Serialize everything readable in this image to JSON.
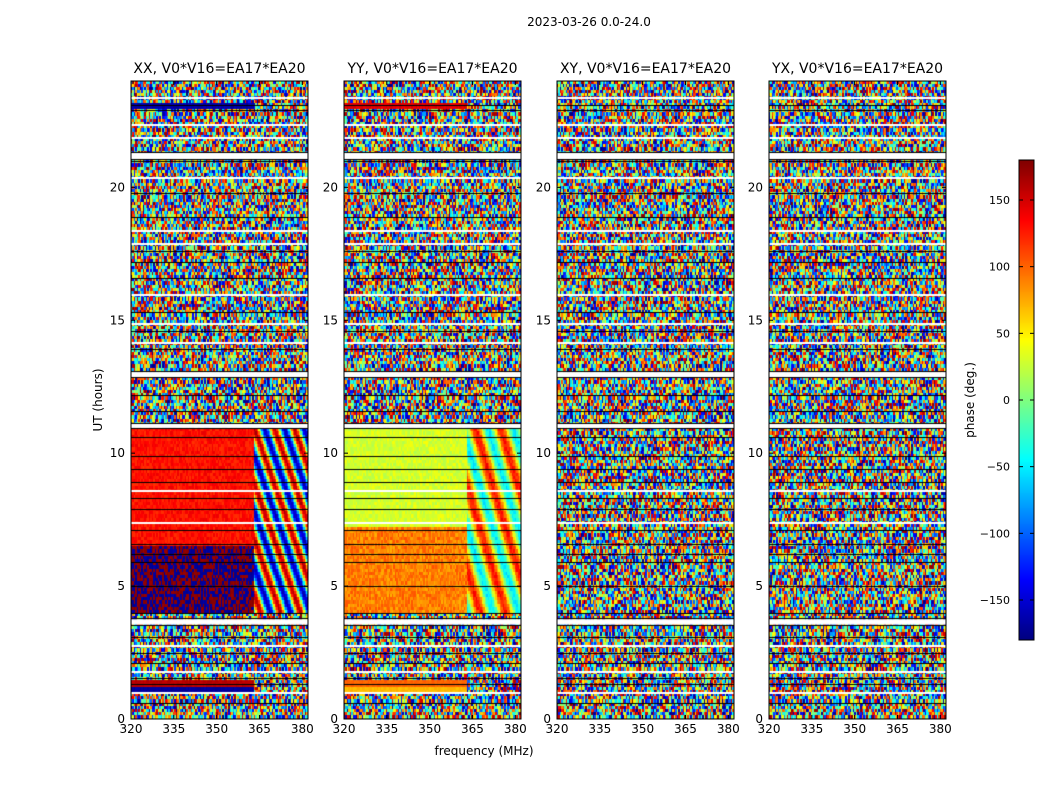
{
  "suptitle": "2023-03-26 0.0-24.0",
  "chart_data": {
    "type": "heatmap",
    "panels": [
      {
        "title": "XX, V0*V16=EA17*EA20",
        "pol": "XX"
      },
      {
        "title": "YY, V0*V16=EA17*EA20",
        "pol": "YY"
      },
      {
        "title": "XY, V0*V16=EA17*EA20",
        "pol": "XY"
      },
      {
        "title": "YX, V0*V16=EA17*EA20",
        "pol": "YX"
      }
    ],
    "xlabel": "frequency (MHz)",
    "ylabel": "UT (hours)",
    "xlim": [
      320,
      382
    ],
    "ylim": [
      0,
      24
    ],
    "xticks": [
      320,
      335,
      350,
      365,
      380
    ],
    "yticks": [
      0,
      5,
      10,
      15,
      20
    ],
    "colorbar": {
      "label": "phase (deg.)",
      "range": [
        -180,
        180
      ],
      "ticks": [
        150,
        100,
        50,
        0,
        -50,
        -100,
        -150
      ],
      "tick_labels": [
        "150",
        "100",
        "50",
        "0",
        "−50",
        "−100",
        "−150"
      ],
      "colormap": "jet"
    }
  }
}
